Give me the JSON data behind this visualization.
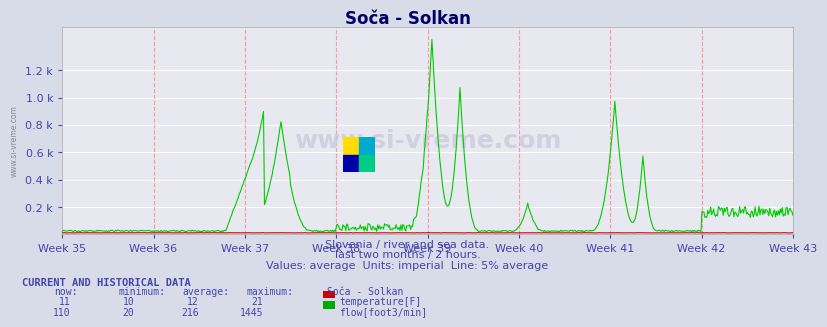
{
  "title": "Soča - Solkan",
  "subtitle_lines": [
    "Slovenia / river and sea data.",
    "last two months / 2 hours.",
    "Values: average  Units: imperial  Line: 5% average"
  ],
  "footer_header": "CURRENT AND HISTORICAL DATA",
  "footer_cols": [
    "now:",
    "minimum:",
    "average:",
    "maximum:",
    "Soča - Solkan"
  ],
  "footer_rows": [
    [
      "11",
      "10",
      "12",
      "21",
      "temperature[F]",
      "#cc0000"
    ],
    [
      "110",
      "20",
      "216",
      "1445",
      "flow[foot3/min]",
      "#00aa00"
    ]
  ],
  "x_tick_labels": [
    "Week 35",
    "Week 36",
    "Week 37",
    "Week 38",
    "Week 39",
    "Week 40",
    "Week 41",
    "Week 42",
    "Week 43"
  ],
  "y_tick_labels": [
    "0.2 k",
    "0.4 k",
    "0.6 k",
    "0.8 k",
    "1.0 k",
    "1.2 k"
  ],
  "y_max": 1445,
  "plot_bg_color": "#e8e8f0",
  "fig_bg_color": "#d8dce8",
  "grid_color_h": "#ffffff",
  "grid_color_v": "#ff9999",
  "temp_color": "#cc0000",
  "flow_color": "#00cc00",
  "title_color": "#000066",
  "axis_label_color": "#4444aa",
  "watermark_text": "www.si-vreme.com",
  "n_points": 756
}
